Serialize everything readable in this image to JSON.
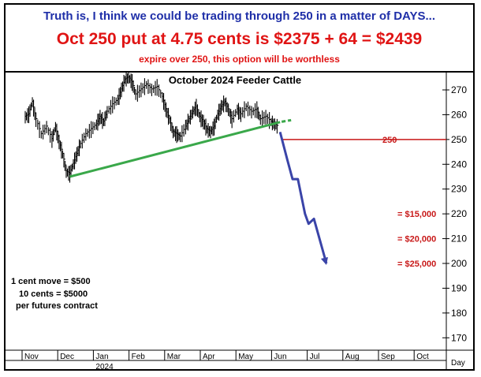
{
  "header": {
    "line1": "Truth is, I think we could be trading through 250 in a matter of DAYS...",
    "line2": "Oct 250 put at 4.75 cents is $2375 + 64 = $2439",
    "line3": "expire over 250, this option will be worthless"
  },
  "notes": {
    "line1": "1 cent move = $500",
    "line2": "10 cents = $5000",
    "line3": "per futures contract"
  },
  "colors": {
    "header_blue": "#1f2fa8",
    "header_red": "#e01414",
    "trendline": "#3aa84a",
    "projection": "#3a44a8",
    "level_line": "#c81818",
    "price_bars": "#000000"
  },
  "chart_data": {
    "type": "bar",
    "title": "October 2024 Feeder Cattle",
    "x_axis_labels": [
      "Nov",
      "Dec",
      "Jan",
      "Feb",
      "Mar",
      "Apr",
      "May",
      "Jun",
      "Jul",
      "Aug",
      "Sep",
      "Oct"
    ],
    "year_label": "2024",
    "x_unit_label": "Day",
    "ylim": [
      165,
      277
    ],
    "y_ticks": [
      170,
      180,
      190,
      200,
      210,
      220,
      230,
      240,
      250,
      260,
      270
    ],
    "grid": false,
    "price_path": {
      "description_points_month_price": [
        [
          0.0,
          259
        ],
        [
          0.1,
          260
        ],
        [
          0.2,
          265
        ],
        [
          0.3,
          258
        ],
        [
          0.45,
          252
        ],
        [
          0.6,
          255
        ],
        [
          0.75,
          250
        ],
        [
          0.85,
          255
        ],
        [
          0.95,
          249
        ],
        [
          1.05,
          244
        ],
        [
          1.15,
          237
        ],
        [
          1.25,
          236
        ],
        [
          1.35,
          240
        ],
        [
          1.45,
          244
        ],
        [
          1.55,
          248
        ],
        [
          1.7,
          252
        ],
        [
          1.85,
          254
        ],
        [
          2.0,
          256
        ],
        [
          2.1,
          259
        ],
        [
          2.2,
          257
        ],
        [
          2.3,
          261
        ],
        [
          2.45,
          264
        ],
        [
          2.6,
          266
        ],
        [
          2.7,
          270
        ],
        [
          2.8,
          274
        ],
        [
          2.9,
          275
        ],
        [
          3.0,
          273
        ],
        [
          3.1,
          268
        ],
        [
          3.25,
          270
        ],
        [
          3.4,
          272
        ],
        [
          3.55,
          270
        ],
        [
          3.7,
          271
        ],
        [
          3.85,
          267
        ],
        [
          3.95,
          262
        ],
        [
          4.05,
          258
        ],
        [
          4.15,
          253
        ],
        [
          4.25,
          252
        ],
        [
          4.35,
          251
        ],
        [
          4.5,
          255
        ],
        [
          4.6,
          258
        ],
        [
          4.7,
          261
        ],
        [
          4.8,
          263
        ],
        [
          4.9,
          259
        ],
        [
          5.0,
          257
        ],
        [
          5.1,
          254
        ],
        [
          5.2,
          253
        ],
        [
          5.3,
          255
        ],
        [
          5.4,
          260
        ],
        [
          5.5,
          263
        ],
        [
          5.6,
          265
        ],
        [
          5.7,
          262
        ],
        [
          5.8,
          258
        ],
        [
          5.95,
          262
        ],
        [
          6.05,
          260
        ],
        [
          6.2,
          263
        ],
        [
          6.35,
          261
        ],
        [
          6.5,
          262
        ],
        [
          6.6,
          258
        ],
        [
          6.75,
          259
        ],
        [
          6.9,
          257
        ],
        [
          7.0,
          256
        ],
        [
          7.1,
          255
        ]
      ]
    },
    "trendline": {
      "from": [
        1.25,
        235
      ],
      "to": [
        7.15,
        257
      ]
    },
    "level_line": {
      "value": 250,
      "label": "250",
      "from_month": 7.2
    },
    "projection": [
      [
        7.15,
        253
      ],
      [
        7.35,
        242
      ],
      [
        7.5,
        234
      ],
      [
        7.65,
        234
      ],
      [
        7.85,
        220
      ],
      [
        7.95,
        216
      ],
      [
        8.1,
        218
      ],
      [
        8.45,
        200
      ]
    ],
    "annotations": [
      {
        "text": "= $15,000",
        "y": 220
      },
      {
        "text": "= $20,000",
        "y": 210
      },
      {
        "text": "= $25,000",
        "y": 200
      }
    ]
  }
}
